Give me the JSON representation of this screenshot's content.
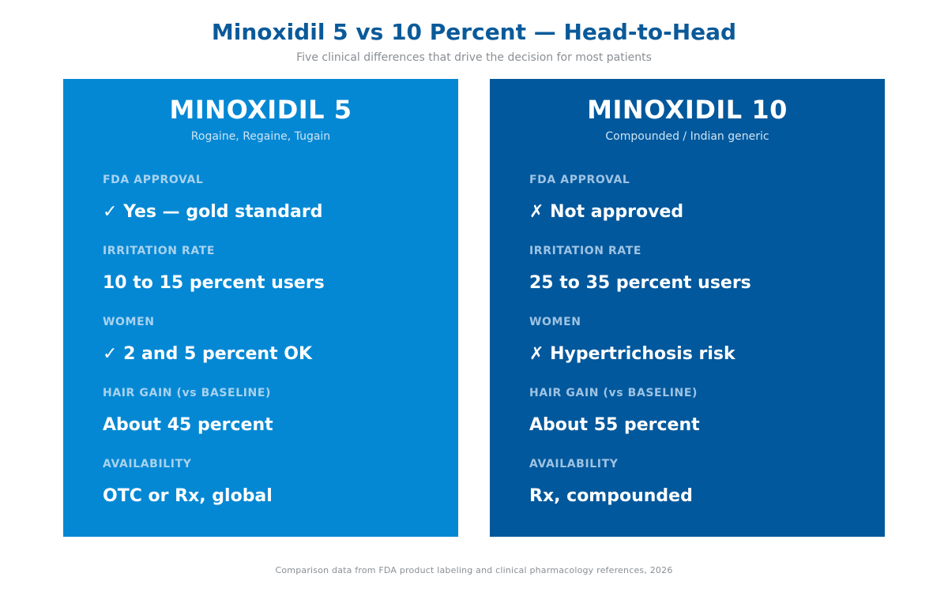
{
  "header": {
    "title": "Minoxidil 5 vs 10 Percent — Head-to-Head",
    "subtitle": "Five clinical differences that drive the decision for most patients"
  },
  "colors": {
    "title": "#0a5a9a",
    "left_card": "#0488d4",
    "right_card": "#02589c"
  },
  "cards": [
    {
      "name": "MINOXIDIL 5",
      "subtitle": "Rogaine, Regaine, Tugain",
      "rows": [
        {
          "label": "FDA APPROVAL",
          "value": "✓ Yes — gold standard"
        },
        {
          "label": "IRRITATION RATE",
          "value": "10 to 15 percent users"
        },
        {
          "label": "WOMEN",
          "value": "✓ 2 and 5 percent OK"
        },
        {
          "label": "HAIR GAIN (vs BASELINE)",
          "value": "About 45 percent"
        },
        {
          "label": "AVAILABILITY",
          "value": "OTC or Rx, global"
        }
      ]
    },
    {
      "name": "MINOXIDIL 10",
      "subtitle": "Compounded / Indian generic",
      "rows": [
        {
          "label": "FDA APPROVAL",
          "value": "✗ Not approved"
        },
        {
          "label": "IRRITATION RATE",
          "value": "25 to 35 percent users"
        },
        {
          "label": "WOMEN",
          "value": "✗ Hypertrichosis risk"
        },
        {
          "label": "HAIR GAIN (vs BASELINE)",
          "value": "About 55 percent"
        },
        {
          "label": "AVAILABILITY",
          "value": "Rx, compounded"
        }
      ]
    }
  ],
  "footer": {
    "note": "Comparison data from FDA product labeling and clinical pharmacology references, 2026"
  }
}
